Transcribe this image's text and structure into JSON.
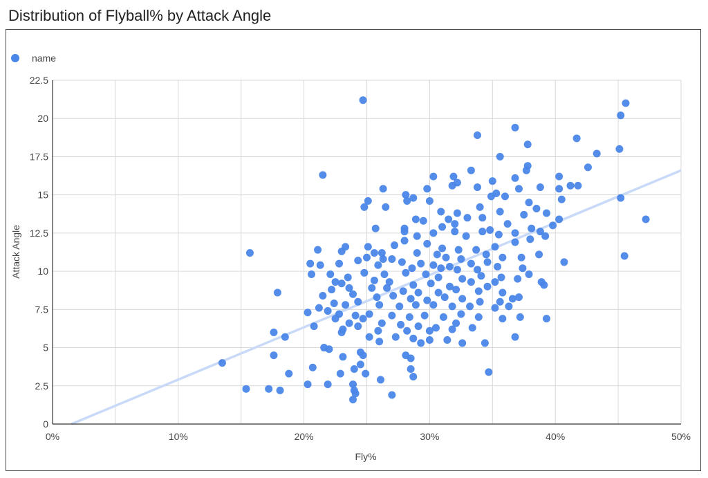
{
  "title": "Distribution of Flyball% by Attack Angle",
  "legend": {
    "label": "name",
    "position": "top-left"
  },
  "colors": {
    "points": "#4a86e8",
    "trendline": "#c9daf8",
    "grid": "#d9d9d9",
    "axis": "#333333",
    "text": "#444444"
  },
  "chart_data": {
    "type": "scatter",
    "title": "Distribution of Flyball% by Attack Angle",
    "xlabel": "Fly%",
    "ylabel": "Attack Angle",
    "xlim": [
      0,
      0.5
    ],
    "ylim": [
      0,
      22.5
    ],
    "x_ticks": [
      0,
      0.05,
      0.1,
      0.15,
      0.2,
      0.25,
      0.3,
      0.35,
      0.4,
      0.45,
      0.5
    ],
    "x_tick_labels": [
      "0%",
      "",
      "10%",
      "",
      "20%",
      "",
      "30%",
      "",
      "40%",
      "",
      "50%"
    ],
    "y_ticks": [
      0,
      2.5,
      5,
      7.5,
      10,
      12.5,
      15,
      17.5,
      20,
      22.5
    ],
    "y_tick_labels": [
      "0",
      "2.5",
      "5",
      "7.5",
      "10",
      "12.5",
      "15",
      "17.5",
      "20",
      "22.5"
    ],
    "grid": true,
    "trendline": {
      "type": "linear",
      "from": [
        0.015,
        0
      ],
      "to": [
        0.5,
        16.6
      ]
    },
    "series": [
      {
        "name": "name",
        "points": [
          [
            0.247,
            21.2
          ],
          [
            0.456,
            21.0
          ],
          [
            0.452,
            20.2
          ],
          [
            0.368,
            19.4
          ],
          [
            0.338,
            18.9
          ],
          [
            0.417,
            18.7
          ],
          [
            0.378,
            18.3
          ],
          [
            0.451,
            18.0
          ],
          [
            0.433,
            17.7
          ],
          [
            0.356,
            17.5
          ],
          [
            0.426,
            16.8
          ],
          [
            0.378,
            16.9
          ],
          [
            0.215,
            16.3
          ],
          [
            0.303,
            16.2
          ],
          [
            0.403,
            16.2
          ],
          [
            0.368,
            16.1
          ],
          [
            0.377,
            16.6
          ],
          [
            0.333,
            16.6
          ],
          [
            0.319,
            16.2
          ],
          [
            0.35,
            15.9
          ],
          [
            0.322,
            15.8
          ],
          [
            0.418,
            15.6
          ],
          [
            0.412,
            15.6
          ],
          [
            0.403,
            15.4
          ],
          [
            0.263,
            15.4
          ],
          [
            0.281,
            15.0
          ],
          [
            0.298,
            15.4
          ],
          [
            0.318,
            15.6
          ],
          [
            0.338,
            15.5
          ],
          [
            0.388,
            15.5
          ],
          [
            0.353,
            15.1
          ],
          [
            0.371,
            15.4
          ],
          [
            0.287,
            14.8
          ],
          [
            0.3,
            14.6
          ],
          [
            0.251,
            14.6
          ],
          [
            0.248,
            14.2
          ],
          [
            0.265,
            14.2
          ],
          [
            0.282,
            14.6
          ],
          [
            0.349,
            14.9
          ],
          [
            0.36,
            14.9
          ],
          [
            0.379,
            14.5
          ],
          [
            0.405,
            14.7
          ],
          [
            0.452,
            14.8
          ],
          [
            0.34,
            14.2
          ],
          [
            0.309,
            13.9
          ],
          [
            0.322,
            13.8
          ],
          [
            0.356,
            13.9
          ],
          [
            0.385,
            14.1
          ],
          [
            0.393,
            13.8
          ],
          [
            0.403,
            13.4
          ],
          [
            0.472,
            13.4
          ],
          [
            0.289,
            13.4
          ],
          [
            0.295,
            13.3
          ],
          [
            0.315,
            13.4
          ],
          [
            0.33,
            13.5
          ],
          [
            0.342,
            13.5
          ],
          [
            0.375,
            13.7
          ],
          [
            0.32,
            13.1
          ],
          [
            0.362,
            13.1
          ],
          [
            0.31,
            12.9
          ],
          [
            0.28,
            12.8
          ],
          [
            0.257,
            12.8
          ],
          [
            0.348,
            12.7
          ],
          [
            0.381,
            12.8
          ],
          [
            0.398,
            13.0
          ],
          [
            0.28,
            12.6
          ],
          [
            0.29,
            12.3
          ],
          [
            0.303,
            12.5
          ],
          [
            0.32,
            12.6
          ],
          [
            0.329,
            12.3
          ],
          [
            0.342,
            12.6
          ],
          [
            0.355,
            12.4
          ],
          [
            0.368,
            12.5
          ],
          [
            0.388,
            12.6
          ],
          [
            0.233,
            11.6
          ],
          [
            0.251,
            11.6
          ],
          [
            0.298,
            11.8
          ],
          [
            0.28,
            12.0
          ],
          [
            0.272,
            11.7
          ],
          [
            0.31,
            11.5
          ],
          [
            0.323,
            11.4
          ],
          [
            0.337,
            11.4
          ],
          [
            0.352,
            11.6
          ],
          [
            0.368,
            11.9
          ],
          [
            0.38,
            12.1
          ],
          [
            0.392,
            12.3
          ],
          [
            0.157,
            11.2
          ],
          [
            0.211,
            11.4
          ],
          [
            0.23,
            11.3
          ],
          [
            0.256,
            11.2
          ],
          [
            0.262,
            11.2
          ],
          [
            0.29,
            11.2
          ],
          [
            0.306,
            11.1
          ],
          [
            0.313,
            10.9
          ],
          [
            0.325,
            10.8
          ],
          [
            0.345,
            11.1
          ],
          [
            0.358,
            10.9
          ],
          [
            0.387,
            11.1
          ],
          [
            0.455,
            11.0
          ],
          [
            0.243,
            10.7
          ],
          [
            0.25,
            10.9
          ],
          [
            0.263,
            10.8
          ],
          [
            0.27,
            10.8
          ],
          [
            0.278,
            10.6
          ],
          [
            0.293,
            10.5
          ],
          [
            0.303,
            10.4
          ],
          [
            0.316,
            10.3
          ],
          [
            0.333,
            10.5
          ],
          [
            0.346,
            10.6
          ],
          [
            0.373,
            10.9
          ],
          [
            0.407,
            10.6
          ],
          [
            0.205,
            10.5
          ],
          [
            0.213,
            10.4
          ],
          [
            0.228,
            10.5
          ],
          [
            0.259,
            10.4
          ],
          [
            0.286,
            10.2
          ],
          [
            0.309,
            10.2
          ],
          [
            0.322,
            10.1
          ],
          [
            0.338,
            10.1
          ],
          [
            0.354,
            10.3
          ],
          [
            0.374,
            10.2
          ],
          [
            0.206,
            9.8
          ],
          [
            0.221,
            9.8
          ],
          [
            0.235,
            9.6
          ],
          [
            0.248,
            9.9
          ],
          [
            0.264,
            9.8
          ],
          [
            0.281,
            9.9
          ],
          [
            0.297,
            9.8
          ],
          [
            0.307,
            9.6
          ],
          [
            0.326,
            9.5
          ],
          [
            0.341,
            9.7
          ],
          [
            0.357,
            9.6
          ],
          [
            0.37,
            9.5
          ],
          [
            0.379,
            9.8
          ],
          [
            0.389,
            9.3
          ],
          [
            0.225,
            9.3
          ],
          [
            0.23,
            9.2
          ],
          [
            0.256,
            9.4
          ],
          [
            0.268,
            9.3
          ],
          [
            0.287,
            9.1
          ],
          [
            0.301,
            9.2
          ],
          [
            0.316,
            9.0
          ],
          [
            0.333,
            9.3
          ],
          [
            0.346,
            9.0
          ],
          [
            0.352,
            9.3
          ],
          [
            0.391,
            9.1
          ],
          [
            0.222,
            8.8
          ],
          [
            0.236,
            8.9
          ],
          [
            0.254,
            8.9
          ],
          [
            0.266,
            8.9
          ],
          [
            0.279,
            8.7
          ],
          [
            0.291,
            8.6
          ],
          [
            0.307,
            8.6
          ],
          [
            0.321,
            8.8
          ],
          [
            0.339,
            8.7
          ],
          [
            0.358,
            8.6
          ],
          [
            0.371,
            8.3
          ],
          [
            0.179,
            8.6
          ],
          [
            0.215,
            8.4
          ],
          [
            0.239,
            8.5
          ],
          [
            0.258,
            8.3
          ],
          [
            0.271,
            8.4
          ],
          [
            0.285,
            8.2
          ],
          [
            0.298,
            8.1
          ],
          [
            0.312,
            8.3
          ],
          [
            0.326,
            8.2
          ],
          [
            0.34,
            8.0
          ],
          [
            0.356,
            8.0
          ],
          [
            0.366,
            8.2
          ],
          [
            0.224,
            7.9
          ],
          [
            0.233,
            7.8
          ],
          [
            0.243,
            8.0
          ],
          [
            0.26,
            7.8
          ],
          [
            0.276,
            7.7
          ],
          [
            0.289,
            7.8
          ],
          [
            0.303,
            7.8
          ],
          [
            0.318,
            7.7
          ],
          [
            0.332,
            7.7
          ],
          [
            0.352,
            7.6
          ],
          [
            0.363,
            7.7
          ],
          [
            0.212,
            7.6
          ],
          [
            0.219,
            7.4
          ],
          [
            0.228,
            7.2
          ],
          [
            0.241,
            7.1
          ],
          [
            0.252,
            7.2
          ],
          [
            0.27,
            7.1
          ],
          [
            0.284,
            7.0
          ],
          [
            0.296,
            7.1
          ],
          [
            0.311,
            7.0
          ],
          [
            0.325,
            7.2
          ],
          [
            0.339,
            7.0
          ],
          [
            0.358,
            6.9
          ],
          [
            0.372,
            7.0
          ],
          [
            0.203,
            7.3
          ],
          [
            0.225,
            6.9
          ],
          [
            0.236,
            6.6
          ],
          [
            0.247,
            6.9
          ],
          [
            0.262,
            6.6
          ],
          [
            0.277,
            6.5
          ],
          [
            0.291,
            6.4
          ],
          [
            0.305,
            6.3
          ],
          [
            0.321,
            6.6
          ],
          [
            0.334,
            6.3
          ],
          [
            0.393,
            6.9
          ],
          [
            0.208,
            6.4
          ],
          [
            0.231,
            6.2
          ],
          [
            0.243,
            6.4
          ],
          [
            0.259,
            6.1
          ],
          [
            0.282,
            6.1
          ],
          [
            0.3,
            6.1
          ],
          [
            0.318,
            6.2
          ],
          [
            0.176,
            6.0
          ],
          [
            0.23,
            6.0
          ],
          [
            0.252,
            5.7
          ],
          [
            0.273,
            5.7
          ],
          [
            0.287,
            5.6
          ],
          [
            0.3,
            5.5
          ],
          [
            0.314,
            5.5
          ],
          [
            0.326,
            5.3
          ],
          [
            0.344,
            5.3
          ],
          [
            0.185,
            5.7
          ],
          [
            0.216,
            5.0
          ],
          [
            0.22,
            4.9
          ],
          [
            0.26,
            5.4
          ],
          [
            0.293,
            5.3
          ],
          [
            0.368,
            5.7
          ],
          [
            0.176,
            4.5
          ],
          [
            0.231,
            4.4
          ],
          [
            0.245,
            4.7
          ],
          [
            0.247,
            4.5
          ],
          [
            0.281,
            4.5
          ],
          [
            0.285,
            4.3
          ],
          [
            0.135,
            4.0
          ],
          [
            0.207,
            3.7
          ],
          [
            0.245,
            3.9
          ],
          [
            0.24,
            3.6
          ],
          [
            0.285,
            3.6
          ],
          [
            0.229,
            3.3
          ],
          [
            0.249,
            3.3
          ],
          [
            0.287,
            3.1
          ],
          [
            0.188,
            3.3
          ],
          [
            0.347,
            3.4
          ],
          [
            0.261,
            2.9
          ],
          [
            0.203,
            2.6
          ],
          [
            0.219,
            2.6
          ],
          [
            0.239,
            2.6
          ],
          [
            0.154,
            2.3
          ],
          [
            0.172,
            2.3
          ],
          [
            0.181,
            2.2
          ],
          [
            0.24,
            2.2
          ],
          [
            0.241,
            2.0
          ],
          [
            0.239,
            1.6
          ],
          [
            0.27,
            1.9
          ]
        ]
      }
    ]
  }
}
